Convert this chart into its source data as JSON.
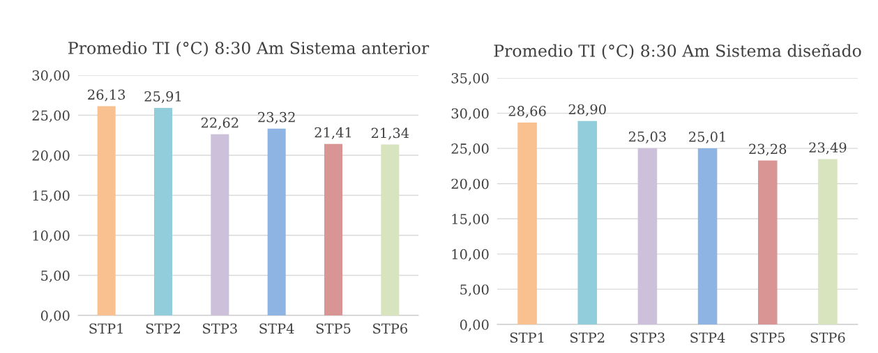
{
  "chart_data": [
    {
      "type": "bar",
      "title": "Promedio TI (°C) 8:30 Am Sistema anterior",
      "categories": [
        "STP1",
        "STP2",
        "STP3",
        "STP4",
        "STP5",
        "STP6"
      ],
      "values": [
        26.13,
        25.91,
        22.62,
        23.32,
        21.41,
        21.34
      ],
      "colors": [
        "#f9c090",
        "#92cddc",
        "#ccc0da",
        "#8eb4e3",
        "#d99594",
        "#d7e4bd"
      ],
      "value_labels": [
        "26,13",
        "25,91",
        "22,62",
        "23,32",
        "21,41",
        "21,34"
      ],
      "ylim": [
        0,
        30
      ],
      "yticks": [
        {
          "value": 0,
          "label": "0,00"
        },
        {
          "value": 5,
          "label": "5,00"
        },
        {
          "value": 10,
          "label": "10,00"
        },
        {
          "value": 15,
          "label": "15,00"
        },
        {
          "value": 20,
          "label": "20,00"
        },
        {
          "value": 25,
          "label": "25,00"
        },
        {
          "value": 30,
          "label": "30,00"
        }
      ],
      "grid": "y"
    },
    {
      "type": "bar",
      "title": "Promedio TI (°C) 8:30 Am Sistema diseñado",
      "categories": [
        "STP1",
        "STP2",
        "STP3",
        "STP4",
        "STP5",
        "STP6"
      ],
      "values": [
        28.66,
        28.9,
        25.03,
        25.01,
        23.28,
        23.49
      ],
      "colors": [
        "#f9c090",
        "#92cddc",
        "#ccc0da",
        "#8eb4e3",
        "#d99594",
        "#d7e4bd"
      ],
      "value_labels": [
        "28,66",
        "28,90",
        "25,03",
        "25,01",
        "23,28",
        "23,49"
      ],
      "ylim": [
        0,
        35
      ],
      "yticks": [
        {
          "value": 0,
          "label": "0,00"
        },
        {
          "value": 5,
          "label": "5,00"
        },
        {
          "value": 10,
          "label": "10,00"
        },
        {
          "value": 15,
          "label": "15,00"
        },
        {
          "value": 20,
          "label": "20,00"
        },
        {
          "value": 25,
          "label": "25,00"
        },
        {
          "value": 30,
          "label": "30,00"
        },
        {
          "value": 35,
          "label": "35,00"
        }
      ],
      "grid": "y"
    }
  ]
}
